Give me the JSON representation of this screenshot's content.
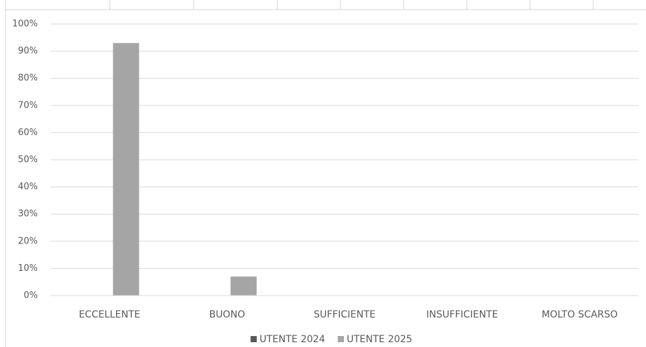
{
  "chart_data": {
    "type": "bar",
    "categories": [
      "ECCELLENTE",
      "BUONO",
      "SUFFICIENTE",
      "INSUFFICIENTE",
      "MOLTO SCARSO"
    ],
    "series": [
      {
        "name": "UTENTE 2024",
        "color": "#595959",
        "values": [
          0,
          0,
          0,
          0,
          0
        ]
      },
      {
        "name": "UTENTE 2025",
        "color": "#a5a5a5",
        "values": [
          93,
          7,
          0,
          0,
          0
        ]
      }
    ],
    "ylim": [
      0,
      100
    ],
    "yticks": [
      {
        "value": 0,
        "label": "0%"
      },
      {
        "value": 10,
        "label": "10%"
      },
      {
        "value": 20,
        "label": "20%"
      },
      {
        "value": 30,
        "label": "30%"
      },
      {
        "value": 40,
        "label": "40%"
      },
      {
        "value": 50,
        "label": "50%"
      },
      {
        "value": 60,
        "label": "60%"
      },
      {
        "value": 70,
        "label": "70%"
      },
      {
        "value": 80,
        "label": "80%"
      },
      {
        "value": 90,
        "label": "90%"
      },
      {
        "value": 100,
        "label": "100%"
      }
    ],
    "grid": true,
    "legend": "bottom"
  }
}
